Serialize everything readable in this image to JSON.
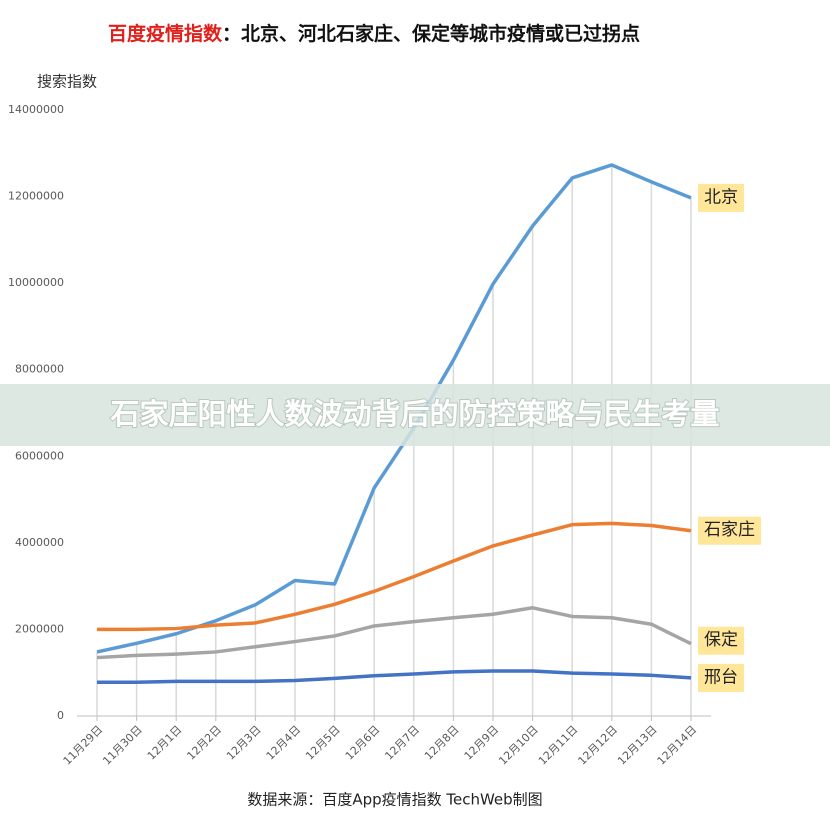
{
  "chart_data": {
    "type": "line",
    "title": {
      "highlight": "百度疫情指数",
      "text": "：北京、河北石家庄、保定等城市疫情或已过拐点"
    },
    "y_label": "搜索指数",
    "source": "数据来源：百度App疫情指数   TechWeb制图",
    "overlay": "石家庄阳性人数波动背后的防控策略与民生考量",
    "categories": [
      "11月29日",
      "11月30日",
      "12月1日",
      "12月2日",
      "12月3日",
      "12月4日",
      "12月5日",
      "12月6日",
      "12月7日",
      "12月8日",
      "12月9日",
      "12月10日",
      "12月11日",
      "12月12日",
      "12月13日",
      "12月14日"
    ],
    "series": [
      {
        "name": "北京",
        "color": "#5b9bd5",
        "values": [
          1480000,
          1680000,
          1900000,
          2200000,
          2570000,
          3130000,
          3050000,
          5270000,
          6650000,
          8220000,
          9980000,
          11320000,
          12430000,
          12730000,
          12340000,
          11970000
        ]
      },
      {
        "name": "石家庄",
        "color": "#ed7d31",
        "values": [
          2000000,
          2000000,
          2020000,
          2100000,
          2150000,
          2350000,
          2580000,
          2880000,
          3220000,
          3580000,
          3930000,
          4180000,
          4420000,
          4450000,
          4400000,
          4280000
        ]
      },
      {
        "name": "保定",
        "color": "#a5a5a5",
        "values": [
          1350000,
          1400000,
          1430000,
          1480000,
          1600000,
          1720000,
          1850000,
          2080000,
          2180000,
          2270000,
          2350000,
          2500000,
          2300000,
          2270000,
          2120000,
          1670000
        ]
      },
      {
        "name": "邢台",
        "color": "#4472c4",
        "values": [
          780000,
          780000,
          800000,
          800000,
          800000,
          820000,
          870000,
          930000,
          970000,
          1020000,
          1040000,
          1040000,
          990000,
          970000,
          940000,
          880000
        ]
      }
    ],
    "ylim": [
      0,
      14000000
    ],
    "yticks": [
      0,
      2000000,
      4000000,
      6000000,
      8000000,
      10000000,
      12000000,
      14000000
    ]
  }
}
